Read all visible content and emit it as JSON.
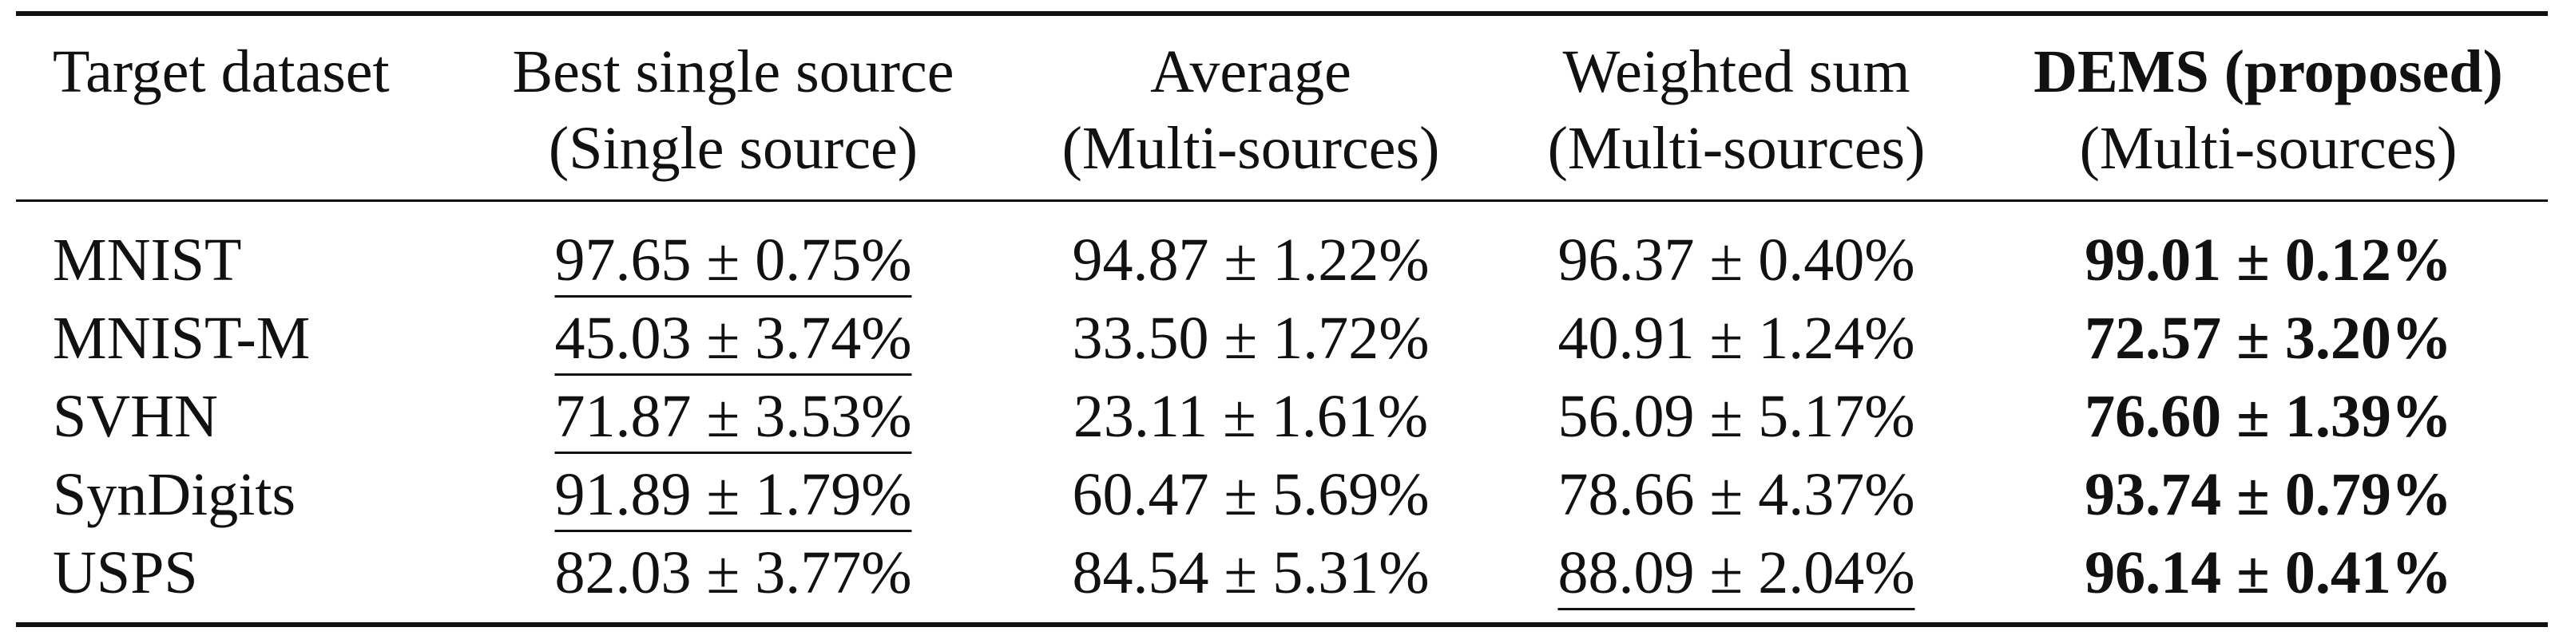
{
  "table": {
    "headers": [
      {
        "line1": "Target dataset",
        "line2": ""
      },
      {
        "line1": "Best single source",
        "line2": "(Single source)"
      },
      {
        "line1": "Average",
        "line2": "(Multi-sources)"
      },
      {
        "line1": "Weighted sum",
        "line2": "(Multi-sources)"
      },
      {
        "line1": "DEMS (proposed)",
        "line2": "(Multi-sources)"
      }
    ],
    "rows": [
      {
        "dataset": "MNIST",
        "best_single": "97.65 ± 0.75%",
        "average": "94.87 ± 1.22%",
        "weighted_sum": "96.37 ± 0.40%",
        "dems": "99.01 ± 0.12%"
      },
      {
        "dataset": "MNIST-M",
        "best_single": "45.03 ± 3.74%",
        "average": "33.50 ± 1.72%",
        "weighted_sum": "40.91 ± 1.24%",
        "dems": "72.57 ± 3.20%"
      },
      {
        "dataset": "SVHN",
        "best_single": "71.87 ± 3.53%",
        "average": "23.11 ± 1.61%",
        "weighted_sum": "56.09 ± 5.17%",
        "dems": "76.60 ± 1.39%"
      },
      {
        "dataset": "SynDigits",
        "best_single": "91.89 ± 1.79%",
        "average": "60.47 ± 5.69%",
        "weighted_sum": "78.66 ± 4.37%",
        "dems": "93.74 ± 0.79%"
      },
      {
        "dataset": "USPS",
        "best_single": "82.03 ± 3.77%",
        "average": "84.54 ± 5.31%",
        "weighted_sum": "88.09 ± 2.04%",
        "dems": "96.14 ± 0.41%"
      }
    ]
  }
}
